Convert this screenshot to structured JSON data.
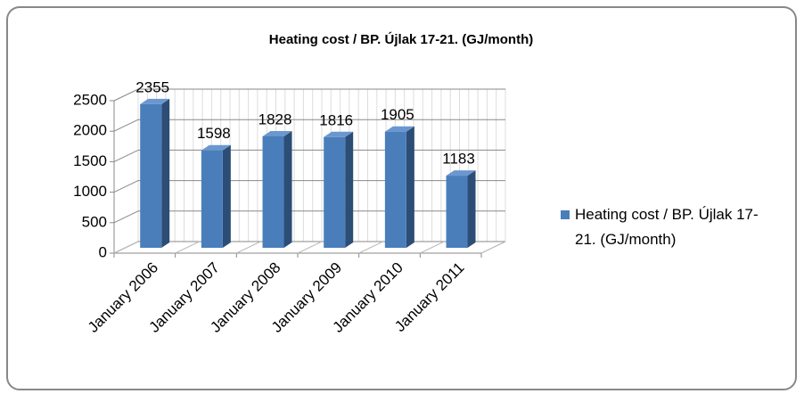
{
  "chart_data": {
    "type": "bar3d",
    "title": "Heating cost / BP. Újlak 17-21. (GJ/month)",
    "categories": [
      "January 2006",
      "January 2007",
      "January 2008",
      "January 2009",
      "January 2010",
      "January 2011"
    ],
    "series": [
      {
        "name": "Heating cost / BP. Újlak 17-21. (GJ/month)",
        "color": "#4a7ebb",
        "values": [
          2355,
          1598,
          1828,
          1816,
          1905,
          1183
        ]
      }
    ],
    "ylim": [
      0,
      2500
    ],
    "yticks": [
      0,
      500,
      1000,
      1500,
      2000,
      2500
    ],
    "grid": true,
    "legend": "right"
  }
}
